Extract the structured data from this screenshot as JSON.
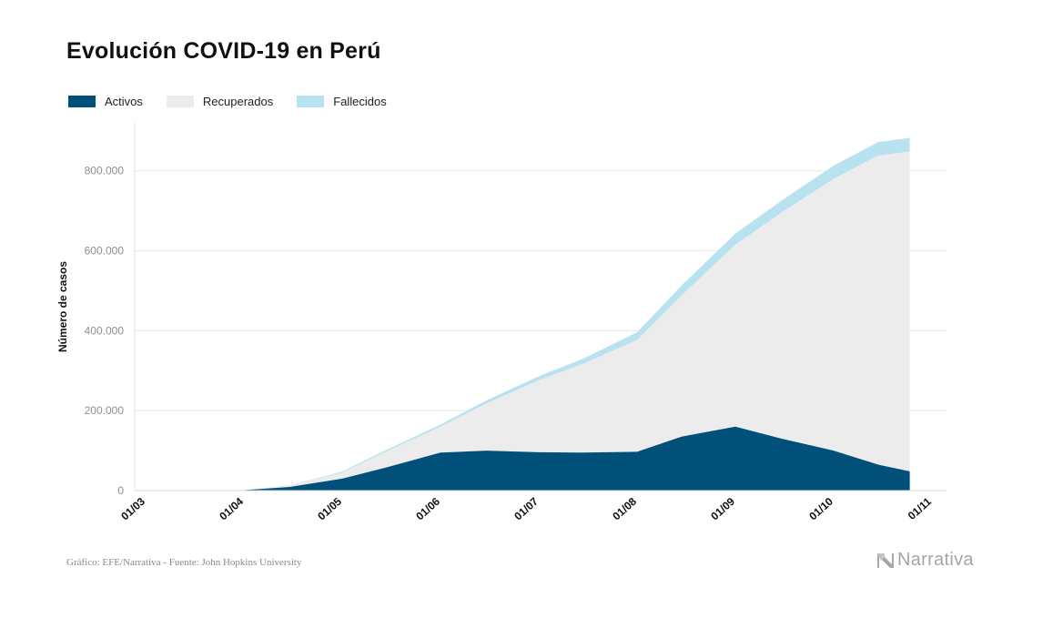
{
  "chart_data": {
    "type": "area",
    "title": "Evolución COVID-19 en Perú",
    "ylabel": "Número de casos",
    "xlabel": "",
    "ylim": [
      0,
      920000
    ],
    "y_ticks": [
      0,
      200000,
      400000,
      600000,
      800000
    ],
    "y_tick_labels": [
      "0",
      "200.000",
      "400.000",
      "600.000",
      "800.000"
    ],
    "x_tick_labels": [
      "01/03",
      "01/04",
      "01/05",
      "01/06",
      "01/07",
      "01/08",
      "01/09",
      "01/10",
      "01/11"
    ],
    "stacked": true,
    "legend_position": "top-left",
    "grid": "horizontal",
    "x": [
      "01/03",
      "15/03",
      "01/04",
      "15/04",
      "01/05",
      "15/05",
      "01/06",
      "15/06",
      "01/07",
      "15/07",
      "01/08",
      "15/08",
      "01/09",
      "15/09",
      "01/10",
      "15/10",
      "25/10"
    ],
    "series": [
      {
        "name": "Activos",
        "color": "#00507a",
        "values": [
          0,
          0,
          1000,
          9000,
          30000,
          58000,
          95000,
          100000,
          96000,
          95000,
          97000,
          135000,
          160000,
          130000,
          100000,
          65000,
          48000
        ]
      },
      {
        "name": "Recuperados",
        "color": "#ececec",
        "values": [
          0,
          0,
          200,
          3000,
          15000,
          40000,
          65000,
          118000,
          180000,
          222000,
          280000,
          353000,
          455000,
          565000,
          680000,
          773000,
          800000
        ]
      },
      {
        "name": "Fallecidos",
        "color": "#b8e2ef",
        "values": [
          0,
          0,
          50,
          700,
          2500,
          4000,
          5000,
          7500,
          10000,
          13000,
          19000,
          25000,
          28000,
          30000,
          33000,
          34000,
          34500
        ]
      }
    ]
  },
  "footer": {
    "source": "Gráfico: EFE/Narrativa - Fuente: John Hopkins University",
    "brand": "Narrativa"
  }
}
